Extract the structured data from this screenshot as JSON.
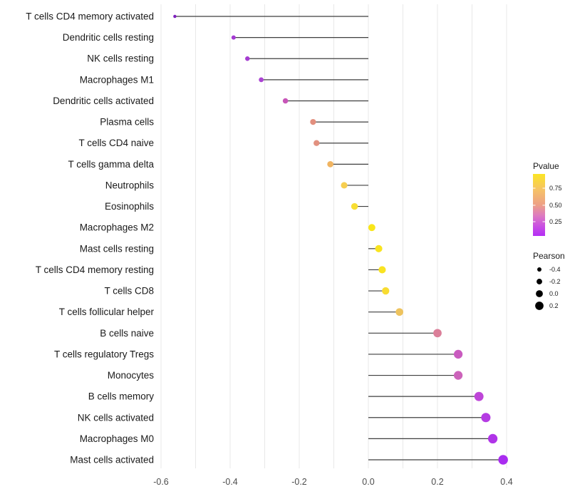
{
  "chart_data": {
    "type": "lollipop",
    "title": "",
    "xlabel": "",
    "ylabel": "",
    "layout_hints": {
      "grid": "on",
      "legend_position": "right",
      "orientation": "horizontal",
      "xlim": [
        -0.62,
        0.44
      ]
    },
    "x_axis": {
      "ticks": [
        {
          "label": "-0.6",
          "value": -0.6
        },
        {
          "label": "-0.4",
          "value": -0.4
        },
        {
          "label": "-0.2",
          "value": -0.2
        },
        {
          "label": "0.0",
          "value": 0.0
        },
        {
          "label": "0.2",
          "value": 0.2
        },
        {
          "label": "0.4",
          "value": 0.4
        }
      ],
      "grid_min": -0.6,
      "grid_max": 0.4,
      "grid_step": 0.1
    },
    "points": [
      {
        "label": "T cells CD4 memory activated",
        "pearson": -0.56,
        "color": "#7F22BE"
      },
      {
        "label": "Dendritic cells resting",
        "pearson": -0.39,
        "color": "#A43AD2"
      },
      {
        "label": "NK cells resting",
        "pearson": -0.35,
        "color": "#A53CD1"
      },
      {
        "label": "Macrophages M1",
        "pearson": -0.31,
        "color": "#AB44D3"
      },
      {
        "label": "Dendritic cells activated",
        "pearson": -0.24,
        "color": "#C755B8"
      },
      {
        "label": "Plasma cells",
        "pearson": -0.16,
        "color": "#E28F7E"
      },
      {
        "label": "T cells CD4 naive",
        "pearson": -0.15,
        "color": "#E29180"
      },
      {
        "label": "T cells gamma delta",
        "pearson": -0.11,
        "color": "#F0B461"
      },
      {
        "label": "Neutrophils",
        "pearson": -0.07,
        "color": "#F6CE50"
      },
      {
        "label": "Eosinophils",
        "pearson": -0.04,
        "color": "#F8DE33"
      },
      {
        "label": "Macrophages M2",
        "pearson": 0.01,
        "color": "#F9E619"
      },
      {
        "label": "Mast cells resting",
        "pearson": 0.03,
        "color": "#F9E41F"
      },
      {
        "label": "T cells CD4 memory resting",
        "pearson": 0.04,
        "color": "#F9E322"
      },
      {
        "label": "T cells CD8",
        "pearson": 0.05,
        "color": "#F8DC31"
      },
      {
        "label": "T cells follicular helper",
        "pearson": 0.09,
        "color": "#EEC35E"
      },
      {
        "label": "B cells naive",
        "pearson": 0.2,
        "color": "#DB7F99"
      },
      {
        "label": "T cells regulatory  Tregs",
        "pearson": 0.26,
        "color": "#C95BBF"
      },
      {
        "label": "Monocytes",
        "pearson": 0.26,
        "color": "#CC63BA"
      },
      {
        "label": "B cells memory",
        "pearson": 0.32,
        "color": "#BE45D8"
      },
      {
        "label": "NK cells activated",
        "pearson": 0.34,
        "color": "#B53CE3"
      },
      {
        "label": "Macrophages M0",
        "pearson": 0.36,
        "color": "#B034E8"
      },
      {
        "label": "Mast cells activated",
        "pearson": 0.39,
        "color": "#A92CF0"
      }
    ],
    "legends": {
      "pvalue": {
        "title": "Pvalue",
        "ticks": [
          {
            "label": "0.75",
            "pos": 0.23
          },
          {
            "label": "0.50",
            "pos": 0.505
          },
          {
            "label": "0.25",
            "pos": 0.77
          }
        ],
        "gradient": [
          {
            "offset": 0.0,
            "color": "#FBE524"
          },
          {
            "offset": 0.25,
            "color": "#F6C366"
          },
          {
            "offset": 0.5,
            "color": "#EDA086"
          },
          {
            "offset": 0.68,
            "color": "#DC79C3"
          },
          {
            "offset": 0.84,
            "color": "#C94FE2"
          },
          {
            "offset": 1.0,
            "color": "#B42EF5"
          }
        ]
      },
      "pearson": {
        "title": "Pearson",
        "items": [
          {
            "label": "-0.4",
            "value": -0.4
          },
          {
            "label": "-0.2",
            "value": -0.2
          },
          {
            "label": "0.0",
            "value": 0.0
          },
          {
            "label": "0.2",
            "value": 0.2
          }
        ]
      }
    },
    "colors": {
      "stem": "#3F3F3F",
      "grid": "#E8E8E8",
      "axis_text": "#4D4D4D",
      "label_text": "#1A1A1A",
      "legend_dot": "#000000",
      "background": "#FFFFFF"
    }
  }
}
